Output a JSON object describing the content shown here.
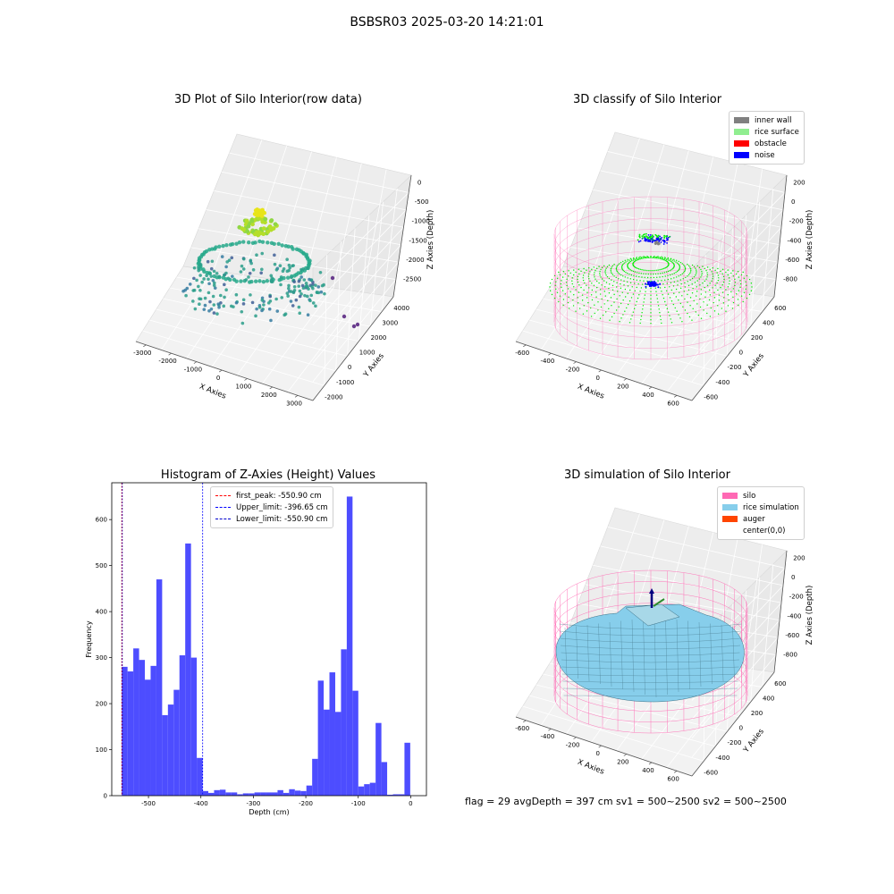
{
  "suptitle": "BSBSR03 2025-03-20 14:21:01",
  "footer": "flag = 29  avgDepth = 397 cm  sv1 = 500~2500  sv2 = 500~2500",
  "colors": {
    "pink": "#ff69b4",
    "green": "#00ee00",
    "blue": "#0000ff",
    "gray": "#808080",
    "light_green": "#90ee90",
    "red": "#ff0000",
    "sky": "#87ceeb",
    "orange": "#ff4500",
    "hist": "#4d4dff"
  },
  "chart_data": [
    {
      "type": "scatter",
      "title": "3D Plot of Silo Interior(row data)",
      "xlabel": "X Axies",
      "ylabel": "Y Axies",
      "zlabel": "Z Axies (Depth)",
      "xticks": [
        "-3000",
        "-2000",
        "-1000",
        "0",
        "1000",
        "2000",
        "3000"
      ],
      "yticks": [
        "-2000",
        "-1000",
        "0",
        "1000",
        "2000",
        "3000",
        "4000"
      ],
      "zticks": [
        "0",
        "-500",
        "-1000",
        "-1500",
        "-2000",
        "-2500"
      ]
    },
    {
      "type": "scatter",
      "title": "3D classify of Silo Interior",
      "xlabel": "X Axies",
      "ylabel": "Y Axies",
      "zlabel": "Z Axies (Depth)",
      "xticks": [
        "-600",
        "-400",
        "-200",
        "0",
        "200",
        "400",
        "600"
      ],
      "yticks": [
        "-600",
        "-400",
        "-200",
        "0",
        "200",
        "400",
        "600"
      ],
      "zticks": [
        "200",
        "0",
        "-200",
        "-400",
        "-600",
        "-800"
      ],
      "legend": [
        "inner wall",
        "rice surface",
        "obstacle",
        "noise"
      ]
    },
    {
      "type": "bar",
      "title": "Histogram of Z-Axies (Height) Values",
      "xlabel": "Depth (cm)",
      "ylabel": "Frequency",
      "xlim": [
        -570,
        30
      ],
      "ylim": [
        0,
        680
      ],
      "xticks": [
        -500,
        -400,
        -300,
        -200,
        -100,
        0
      ],
      "yticks": [
        0,
        100,
        200,
        300,
        400,
        500,
        600
      ],
      "bin_start": -550.9,
      "bin_width": 11.0,
      "values": [
        280,
        270,
        320,
        295,
        252,
        282,
        470,
        175,
        198,
        230,
        305,
        548,
        300,
        82,
        10,
        6,
        12,
        13,
        7,
        7,
        3,
        5,
        5,
        7,
        7,
        7,
        7,
        12,
        6,
        14,
        11,
        10,
        22,
        80,
        250,
        187,
        268,
        182,
        318,
        650,
        228,
        20,
        25,
        28,
        158,
        73,
        2,
        3,
        3,
        115
      ],
      "lines": [
        {
          "label": "first_peak: -550.90 cm",
          "x": -550.9,
          "color": "#ff0000"
        },
        {
          "label": "Upper_limit: -396.65 cm",
          "x": -396.65,
          "color": "#0000ff"
        },
        {
          "label": "Lower_limit: -550.90 cm",
          "x": -550.9,
          "color": "#0000cd"
        }
      ]
    },
    {
      "type": "scatter",
      "title": "3D simulation of Silo Interior",
      "xlabel": "X Axies",
      "ylabel": "Y Axies",
      "zlabel": "Z Axies (Depth)",
      "xticks": [
        "-600",
        "-400",
        "-200",
        "0",
        "200",
        "400",
        "600"
      ],
      "yticks": [
        "-600",
        "-400",
        "-200",
        "0",
        "200",
        "400",
        "600"
      ],
      "zticks": [
        "200",
        "0",
        "-200",
        "-400",
        "-600",
        "-800"
      ],
      "legend": [
        "silo",
        "rice simulation",
        "auger",
        "center(0,0)"
      ]
    }
  ]
}
